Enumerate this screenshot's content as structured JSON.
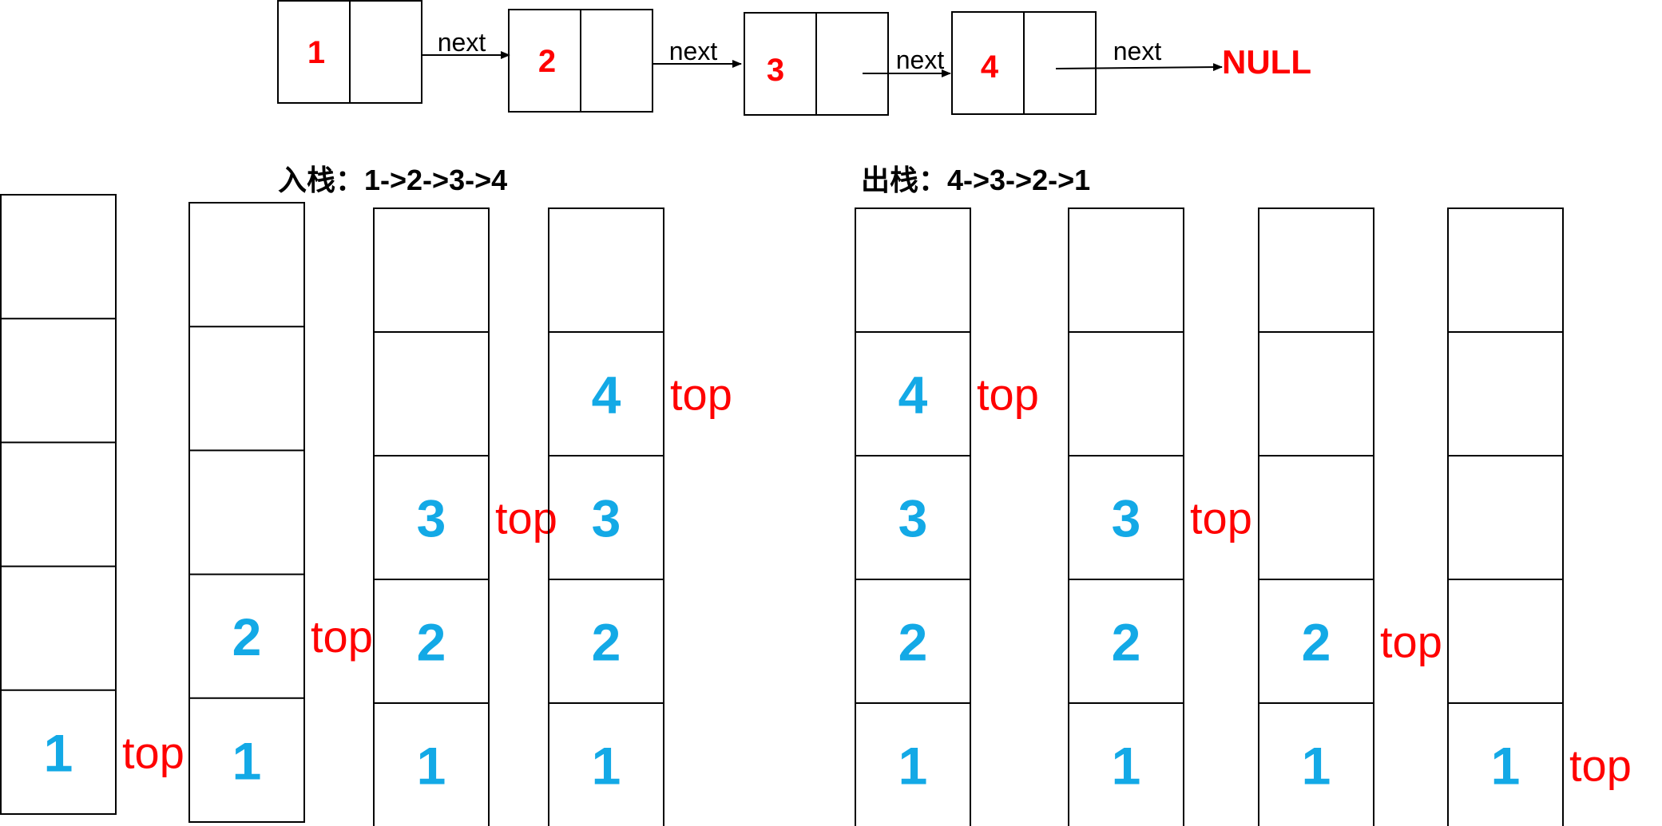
{
  "linked_list": {
    "nodes": [
      {
        "value": "1"
      },
      {
        "value": "2"
      },
      {
        "value": "3"
      },
      {
        "value": "4"
      }
    ],
    "pointer_label": "next",
    "terminator": "NULL"
  },
  "push_caption": "入栈：1->2->3->4",
  "pop_caption": "出栈：4->3->2->1",
  "top_label": "top",
  "stacks": [
    {
      "cells": [
        "1",
        "",
        "",
        "",
        ""
      ],
      "top_at": 0
    },
    {
      "cells": [
        "1",
        "2",
        "",
        "",
        ""
      ],
      "top_at": 1
    },
    {
      "cells": [
        "1",
        "2",
        "3",
        "",
        ""
      ],
      "top_at": 2
    },
    {
      "cells": [
        "1",
        "2",
        "3",
        "4",
        ""
      ],
      "top_at": 3
    },
    {
      "cells": [
        "1",
        "2",
        "3",
        "4",
        ""
      ],
      "top_at": 3
    },
    {
      "cells": [
        "1",
        "2",
        "3",
        "",
        ""
      ],
      "top_at": 2
    },
    {
      "cells": [
        "1",
        "2",
        "",
        "",
        ""
      ],
      "top_at": 1
    },
    {
      "cells": [
        "1",
        "",
        "",
        "",
        ""
      ],
      "top_at": 0
    }
  ],
  "colors": {
    "node_value": "#ff0000",
    "stack_value": "#13a9e6",
    "top_label": "#ff0000",
    "lines": "#000000"
  }
}
